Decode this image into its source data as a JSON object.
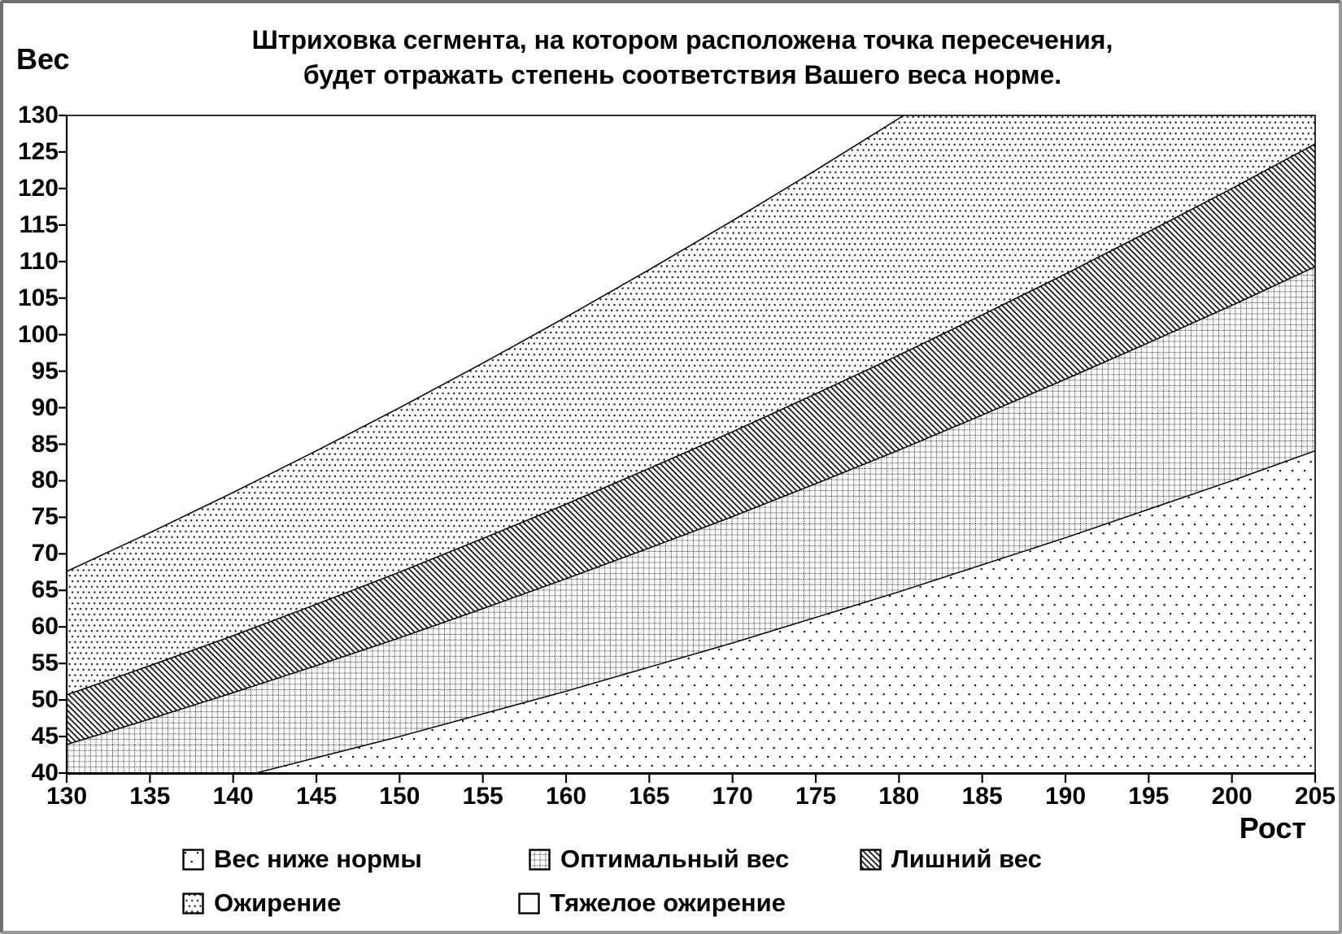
{
  "title": {
    "line1": "Штриховка сегмента, на котором расположена точка пересечения,",
    "line2": "будет отражать степень соответствия Вашего веса норме."
  },
  "axes": {
    "y": {
      "title": "Вес",
      "min": 40,
      "max": 130,
      "tick_step": 5,
      "ticks": [
        40,
        45,
        50,
        55,
        60,
        65,
        70,
        75,
        80,
        85,
        90,
        95,
        100,
        105,
        110,
        115,
        120,
        125,
        130
      ]
    },
    "x": {
      "title": "Рост",
      "min": 130,
      "max": 205,
      "tick_step": 5,
      "ticks": [
        130,
        135,
        140,
        145,
        150,
        155,
        160,
        165,
        170,
        175,
        180,
        185,
        190,
        195,
        200,
        205
      ]
    }
  },
  "chart_data": {
    "type": "area",
    "title": "Штриховка сегмента, на котором расположена точка пересечения, будет отражать степень соответствия Вашего веса норме.",
    "xlabel": "Рост",
    "ylabel": "Вес",
    "xlim": [
      130,
      205
    ],
    "ylim": [
      40,
      130
    ],
    "grid": false,
    "legend_position": "bottom",
    "x": [
      130,
      135,
      140,
      145,
      150,
      155,
      160,
      165,
      170,
      175,
      180,
      185,
      190,
      195,
      200,
      205
    ],
    "series": [
      {
        "name": "bmi-40-boundary",
        "bmi": 40,
        "region_below": "Ожирение",
        "pattern_below": "dense-dots",
        "values": [
          67.6,
          72.9,
          78.4,
          84.1,
          90.0,
          96.1,
          102.4,
          108.9,
          115.6,
          122.5,
          129.6,
          136.9,
          144.4,
          152.1,
          160.0,
          168.1
        ]
      },
      {
        "name": "bmi-30-boundary",
        "bmi": 30,
        "region_below": "Лишний вес",
        "pattern_below": "diag-hatch",
        "values": [
          50.7,
          54.7,
          58.8,
          63.1,
          67.5,
          72.1,
          76.8,
          81.7,
          86.7,
          91.9,
          97.2,
          102.7,
          108.3,
          114.1,
          120.0,
          126.1
        ]
      },
      {
        "name": "bmi-26-boundary",
        "bmi": 26,
        "region_below": "Оптимальный вес",
        "pattern_below": "dot-grid",
        "values": [
          43.9,
          47.4,
          51.0,
          54.7,
          58.5,
          62.5,
          66.6,
          70.8,
          75.1,
          79.6,
          84.2,
          89.0,
          93.9,
          98.9,
          104.0,
          109.3
        ]
      },
      {
        "name": "bmi-20-boundary",
        "bmi": 20,
        "region_below": "Вес ниже нормы",
        "pattern_below": "sparse-dots",
        "values": [
          33.8,
          36.5,
          39.2,
          42.1,
          45.0,
          48.1,
          51.2,
          54.5,
          57.8,
          61.3,
          64.8,
          68.5,
          72.2,
          76.1,
          80.0,
          84.1
        ]
      }
    ],
    "background_region": {
      "name": "Тяжелое ожирение",
      "pattern": "white"
    }
  },
  "legend": {
    "rows": [
      [
        {
          "label": "Вес ниже нормы",
          "pattern": "sparse-dots"
        },
        {
          "label": "Оптимальный вес",
          "pattern": "dot-grid"
        },
        {
          "label": "Лишний вес",
          "pattern": "diag-hatch"
        }
      ],
      [
        {
          "label": "Ожирение",
          "pattern": "dense-dots"
        },
        {
          "label": "Тяжелое ожирение",
          "pattern": "white"
        }
      ]
    ]
  },
  "colors": {
    "ink": "#000000",
    "pattern_ink": "#161616",
    "frame": "#6f6f6f",
    "background": "#ffffff"
  }
}
